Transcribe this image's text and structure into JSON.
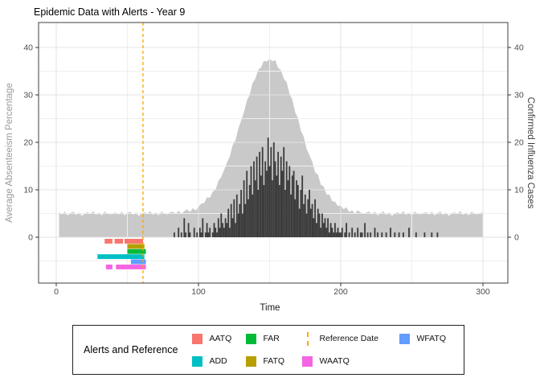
{
  "chart_data": {
    "type": "combo-area-bar",
    "title": "Epidemic Data with Alerts - Year 9",
    "xlabel": "Time",
    "ylabel_left": "Average Absenteeism Percentage",
    "ylabel_right": "Confirmed Influenza Cases",
    "x_ticks": [
      0,
      100,
      200,
      300
    ],
    "x_minor_ticks": [
      50,
      150,
      250
    ],
    "y_ticks": [
      0,
      10,
      20,
      30,
      40
    ],
    "y_minor_ticks": [
      -5,
      5,
      15,
      25,
      35
    ],
    "xlim": [
      -12,
      317
    ],
    "ylim": [
      -9.7,
      45.3
    ],
    "grid": "on",
    "legend_position": "bottom",
    "reference_date": 61,
    "reference_color": "#FFA500",
    "absenteeism_area": {
      "name": "Average Absenteeism Percentage",
      "color": "#C9C9C9",
      "axis": "left",
      "t_start": 2,
      "t_step": 2,
      "values": [
        5.3,
        4.8,
        5.4,
        4.6,
        5.1,
        5.4,
        4.7,
        5.2,
        4.5,
        5.0,
        5.3,
        4.9,
        5.5,
        4.7,
        5.2,
        4.6,
        5.4,
        5.0,
        4.8,
        5.1,
        5.2,
        4.8,
        5.4,
        4.6,
        5.1,
        5.4,
        4.7,
        5.2,
        4.5,
        5.0,
        5.3,
        4.9,
        5.5,
        4.7,
        5.2,
        4.6,
        5.4,
        5.0,
        4.8,
        5.2,
        5.4,
        4.9,
        5.6,
        4.9,
        5.5,
        5.9,
        5.3,
        6.1,
        5.6,
        6.4,
        7.1,
        7.2,
        8.4,
        8.3,
        9.6,
        10.0,
        11.9,
        12.7,
        14.2,
        15.7,
        17.0,
        19.4,
        20.4,
        22.9,
        24.6,
        26.4,
        28.8,
        30.0,
        32.5,
        33.4,
        35.3,
        35.8,
        37.2,
        37.0,
        37.6,
        37.1,
        37.3,
        35.7,
        35.2,
        33.4,
        32.7,
        30.2,
        29.0,
        26.3,
        25.1,
        22.4,
        21.2,
        18.6,
        17.3,
        15.9,
        13.7,
        13.2,
        11.1,
        10.7,
        9.0,
        9.0,
        7.6,
        7.5,
        6.6,
        6.7,
        5.9,
        6.3,
        5.3,
        5.7,
        4.9,
        5.7,
        5.2,
        4.9,
        5.2,
        5.4,
        4.8,
        5.4,
        4.6,
        5.1,
        5.4,
        4.7,
        5.2,
        4.5,
        5.0,
        5.3,
        4.9,
        5.5,
        4.7,
        5.2,
        4.6,
        5.4,
        5.0,
        4.8,
        5.1,
        5.3,
        4.8,
        5.4,
        4.6,
        5.1,
        5.4,
        4.7,
        5.2,
        4.5,
        5.0,
        5.3,
        4.9,
        5.5,
        4.7,
        5.2,
        4.6,
        5.4,
        5.0,
        4.8,
        5.1,
        5.3
      ]
    },
    "influenza_bars": {
      "name": "Confirmed Influenza Cases",
      "color": "#3C3C3C",
      "axis": "right",
      "t_start": 82,
      "t_step": 1,
      "values": [
        0,
        1,
        0,
        0,
        2,
        0,
        1,
        0,
        4,
        1,
        0,
        3,
        1,
        0,
        0,
        2,
        0,
        1,
        0,
        2,
        1,
        4,
        0,
        1,
        3,
        1,
        2,
        0,
        1,
        3,
        2,
        1,
        4,
        2,
        5,
        3,
        2,
        4,
        3,
        6,
        2,
        7,
        4,
        8,
        3,
        9,
        5,
        7,
        10,
        5,
        12,
        7,
        14,
        8,
        11,
        15,
        9,
        16,
        12,
        17,
        10,
        18,
        13,
        19,
        11,
        16,
        14,
        21,
        15,
        19,
        12,
        20,
        16,
        13,
        18,
        11,
        17,
        14,
        19,
        10,
        16,
        12,
        15,
        9,
        13,
        14,
        8,
        12,
        11,
        6,
        10,
        13,
        7,
        9,
        5,
        8,
        10,
        6,
        7,
        4,
        8,
        3,
        6,
        5,
        2,
        5,
        3,
        4,
        2,
        4,
        1,
        3,
        2,
        1,
        3,
        1,
        2,
        1,
        1,
        2,
        0,
        1,
        3,
        0,
        1,
        0,
        2,
        0,
        1,
        0,
        2,
        0,
        1,
        1,
        0,
        3,
        0,
        1,
        0,
        1,
        0,
        0,
        2,
        0,
        1,
        0,
        0,
        1,
        0,
        0,
        1,
        0,
        0,
        2,
        0,
        0,
        1,
        0,
        0,
        1,
        0,
        0,
        1,
        0,
        0,
        0,
        2,
        0,
        0,
        0,
        0,
        1,
        0,
        0,
        0,
        0,
        0,
        1,
        0,
        0,
        0,
        0,
        1,
        0,
        0,
        0,
        1
      ]
    },
    "alerts": [
      {
        "name": "AATQ",
        "color": "#F8766D",
        "row": 0,
        "segments": [
          [
            34,
            39.5
          ],
          [
            41,
            47
          ],
          [
            48,
            61
          ]
        ]
      },
      {
        "name": "FATQ",
        "color": "#B79F00",
        "row": 1,
        "segments": [
          [
            50,
            62
          ]
        ]
      },
      {
        "name": "FAR",
        "color": "#00BA38",
        "row": 2,
        "segments": [
          [
            50,
            63
          ]
        ]
      },
      {
        "name": "ADD",
        "color": "#00BFC4",
        "row": 3,
        "segments": [
          [
            29,
            62
          ]
        ]
      },
      {
        "name": "WFATQ",
        "color": "#619CFF",
        "row": 4,
        "segments": [
          [
            52.5,
            63
          ]
        ]
      },
      {
        "name": "WAATQ",
        "color": "#F564E2",
        "row": 5,
        "segments": [
          [
            35,
            39.5
          ],
          [
            42,
            63
          ]
        ]
      }
    ]
  },
  "legend": {
    "title": "Alerts and Reference",
    "entries": [
      {
        "label": "AATQ",
        "color": "#F8766D",
        "key": "square",
        "row": 1,
        "col": 1
      },
      {
        "label": "FAR",
        "color": "#00BA38",
        "key": "square",
        "row": 1,
        "col": 2
      },
      {
        "label": "Reference Date",
        "color": "#FFA500",
        "key": "dashed-line",
        "row": 1,
        "col": 3
      },
      {
        "label": "WFATQ",
        "color": "#619CFF",
        "key": "square",
        "row": 1,
        "col": 4
      },
      {
        "label": "ADD",
        "color": "#00BFC4",
        "key": "square",
        "row": 2,
        "col": 1
      },
      {
        "label": "FATQ",
        "color": "#B79F00",
        "key": "square",
        "row": 2,
        "col": 2
      },
      {
        "label": "WAATQ",
        "color": "#F564E2",
        "key": "square",
        "row": 2,
        "col": 3
      }
    ]
  }
}
